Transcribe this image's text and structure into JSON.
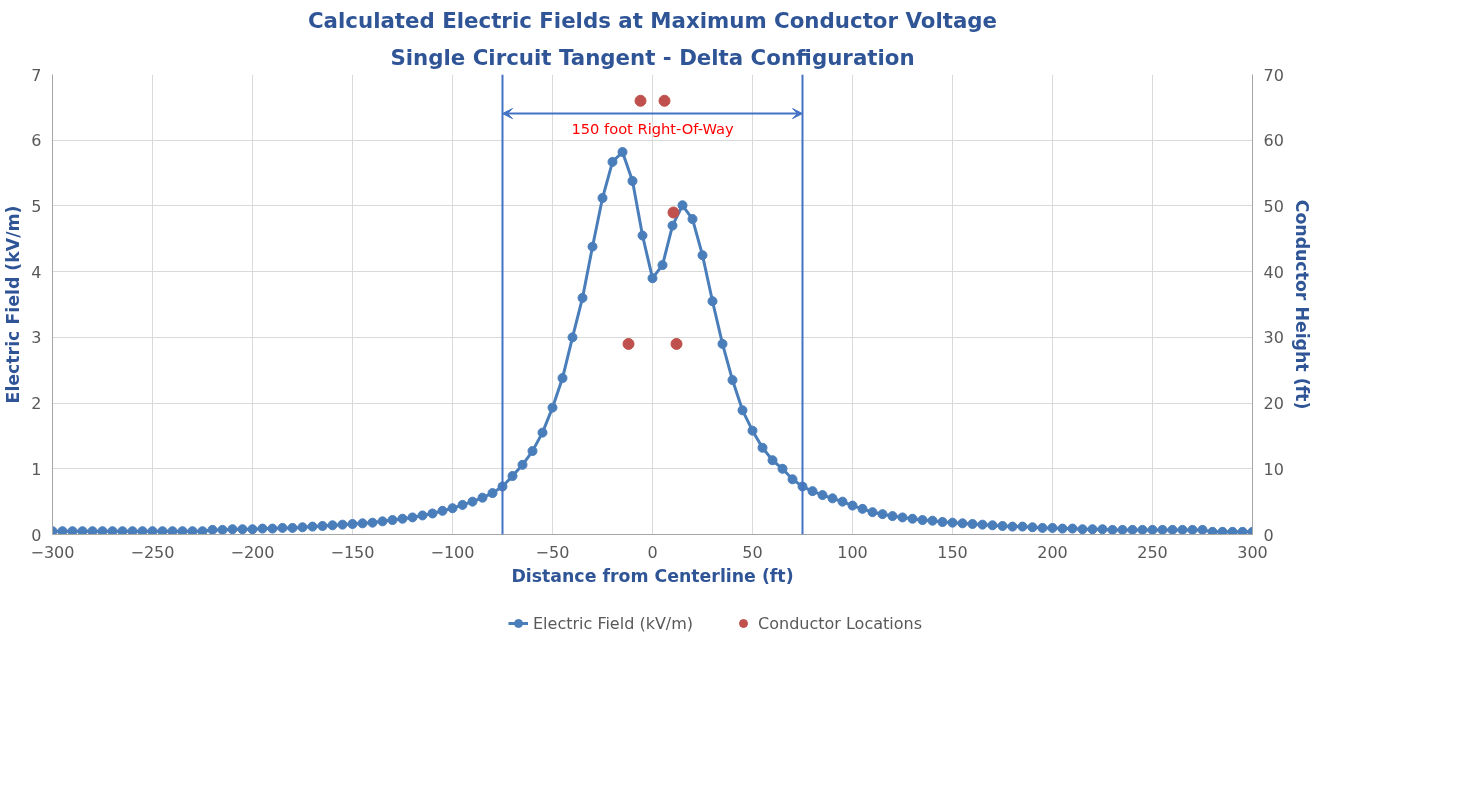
{
  "chart_data": {
    "type": "line",
    "title": "Calculated Electric Fields at Maximum Conductor Voltage",
    "subtitle": "Single Circuit Tangent - Delta Configuration",
    "xlabel": "Distance from Centerline (ft)",
    "ylabel": "Electric Field (kV/m)",
    "y2label": "Conductor Height (ft)",
    "series": [
      {
        "name": "Electric Field (kV/m)",
        "color": "#4a7ebb",
        "marker": "circle",
        "x": [
          -300,
          -295,
          -290,
          -285,
          -280,
          -275,
          -270,
          -265,
          -260,
          -255,
          -250,
          -245,
          -240,
          -235,
          -230,
          -225,
          -220,
          -215,
          -210,
          -205,
          -200,
          -195,
          -190,
          -185,
          -180,
          -175,
          -170,
          -165,
          -160,
          -155,
          -150,
          -145,
          -140,
          -135,
          -130,
          -125,
          -120,
          -115,
          -110,
          -105,
          -100,
          -95,
          -90,
          -85,
          -80,
          -75,
          -70,
          -65,
          -60,
          -55,
          -50,
          -45,
          -40,
          -35,
          -30,
          -25,
          -20,
          -15,
          -10,
          -5,
          0,
          5,
          10,
          15,
          20,
          25,
          30,
          35,
          40,
          45,
          50,
          55,
          60,
          65,
          70,
          75,
          80,
          85,
          90,
          95,
          100,
          105,
          110,
          115,
          120,
          125,
          130,
          135,
          140,
          145,
          150,
          155,
          160,
          165,
          170,
          175,
          180,
          185,
          190,
          195,
          200,
          205,
          210,
          215,
          220,
          225,
          230,
          235,
          240,
          245,
          250,
          255,
          260,
          265,
          270,
          275,
          280,
          285,
          290,
          295,
          300
        ],
        "values": [
          0.05,
          0.05,
          0.05,
          0.05,
          0.05,
          0.05,
          0.05,
          0.05,
          0.05,
          0.05,
          0.05,
          0.05,
          0.05,
          0.05,
          0.05,
          0.05,
          0.07,
          0.07,
          0.08,
          0.08,
          0.08,
          0.09,
          0.09,
          0.1,
          0.1,
          0.11,
          0.12,
          0.13,
          0.14,
          0.15,
          0.16,
          0.17,
          0.18,
          0.2,
          0.22,
          0.24,
          0.26,
          0.29,
          0.32,
          0.36,
          0.4,
          0.45,
          0.5,
          0.56,
          0.63,
          0.73,
          0.89,
          1.06,
          1.27,
          1.55,
          1.93,
          2.38,
          3.0,
          3.6,
          4.38,
          5.12,
          5.67,
          5.82,
          5.38,
          4.55,
          3.9,
          4.1,
          4.7,
          5.01,
          4.8,
          4.25,
          3.55,
          2.9,
          2.35,
          1.89,
          1.58,
          1.32,
          1.13,
          1.0,
          0.84,
          0.73,
          0.66,
          0.6,
          0.55,
          0.5,
          0.44,
          0.39,
          0.34,
          0.31,
          0.28,
          0.26,
          0.24,
          0.22,
          0.21,
          0.19,
          0.18,
          0.17,
          0.16,
          0.15,
          0.14,
          0.13,
          0.12,
          0.12,
          0.11,
          0.1,
          0.1,
          0.09,
          0.09,
          0.08,
          0.08,
          0.08,
          0.07,
          0.07,
          0.07,
          0.07,
          0.07,
          0.07,
          0.07,
          0.07,
          0.07,
          0.07,
          0.04,
          0.04,
          0.04,
          0.04,
          0.04
        ]
      },
      {
        "name": "Conductor Locations",
        "type": "scatter",
        "axis": "y2",
        "color": "#c0504d",
        "marker": "circle",
        "x": [
          -6,
          6,
          10.5,
          -12,
          12
        ],
        "values": [
          66,
          66,
          49,
          29,
          29
        ]
      }
    ],
    "xlim": [
      -300,
      300
    ],
    "xticks": [
      -300,
      -250,
      -200,
      -150,
      -100,
      -50,
      0,
      50,
      100,
      150,
      200,
      250,
      300
    ],
    "ylim": [
      0,
      7
    ],
    "yticks": [
      0,
      1,
      2,
      3,
      4,
      5,
      6,
      7
    ],
    "y2lim": [
      0,
      70
    ],
    "y2ticks": [
      0,
      10,
      20,
      30,
      40,
      50,
      60,
      70
    ],
    "ref_lines": [
      {
        "axis": "x",
        "value": -75,
        "color": "#4472c4"
      },
      {
        "axis": "x",
        "value": 75,
        "color": "#4472c4"
      }
    ],
    "annotations": [
      "150 foot Right-Of-Way"
    ],
    "grid": true,
    "legend": "bottom"
  }
}
